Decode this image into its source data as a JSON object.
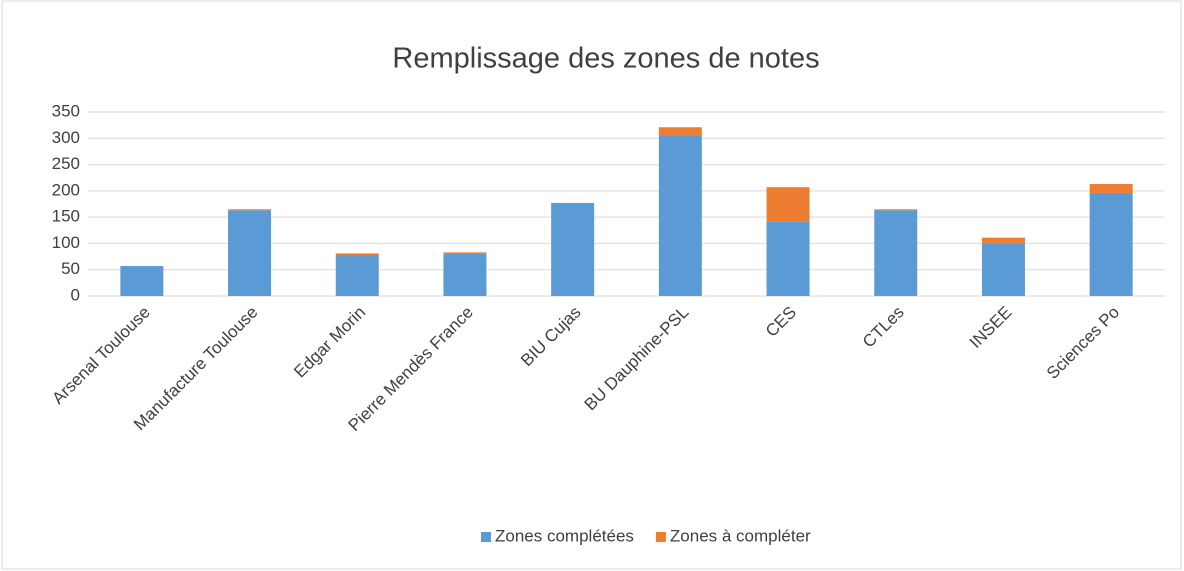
{
  "chart_data": {
    "type": "stacked_bar",
    "title": "Remplissage des zones de notes",
    "categories": [
      "Arsenal Toulouse",
      "Manufacture Toulouse",
      "Edgar Morin",
      "Pierre Mendès France",
      "BIU Cujas",
      "BU Dauphine-PSL",
      "CES",
      "CTLes",
      "INSEE",
      "Sciences Po"
    ],
    "series": [
      {
        "name": "Zones complétées",
        "color": "#5b9bd5",
        "values": [
          57,
          163,
          78,
          80,
          177,
          306,
          141,
          163,
          99,
          196
        ]
      },
      {
        "name": "Zones à compléter",
        "color": "#ed7d31",
        "values": [
          0,
          2,
          3,
          3,
          0,
          15,
          66,
          2,
          12,
          17
        ]
      }
    ],
    "ylim": [
      0,
      350
    ],
    "yticks": [
      0,
      50,
      100,
      150,
      200,
      250,
      300,
      350
    ],
    "grid": true,
    "legend": "bottom"
  }
}
